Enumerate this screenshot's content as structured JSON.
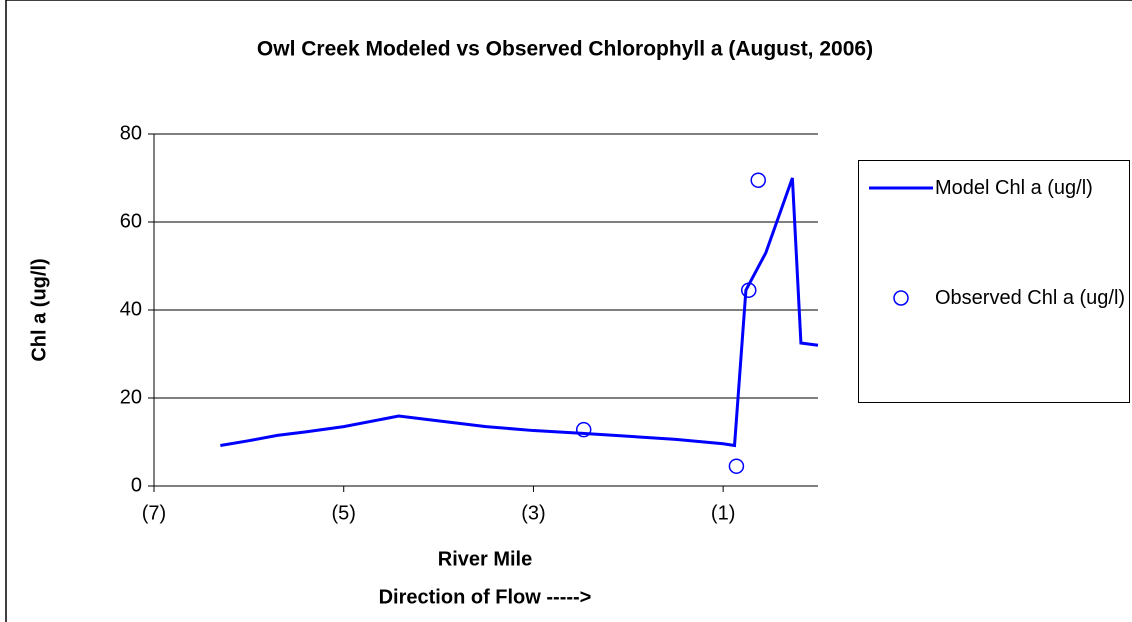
{
  "chart_data": {
    "type": "line",
    "title": "Owl Creek Modeled vs Observed Chlorophyll a  (August, 2006)",
    "x_label": "River Mile",
    "x_label_2": "Direction of Flow ----->",
    "y_label": "Chl a (ug/l)",
    "xlim": [
      -7,
      0
    ],
    "xticks": [
      {
        "value": -7,
        "label": "(7)"
      },
      {
        "value": -5,
        "label": "(5)"
      },
      {
        "value": -3,
        "label": "(3)"
      },
      {
        "value": -1,
        "label": "(1)"
      }
    ],
    "ylim": [
      0,
      80
    ],
    "yticks": [
      0,
      20,
      40,
      60,
      80
    ],
    "grid": true,
    "legend": "right",
    "series": [
      {
        "name": "Model Chl a (ug/l)",
        "type": "line",
        "color": "#0000ff",
        "x": [
          -6.3,
          -6.0,
          -5.7,
          -5.4,
          -5.0,
          -4.42,
          -4.0,
          -3.5,
          -3.0,
          -2.5,
          -2.0,
          -1.5,
          -1.0,
          -0.88,
          -0.76,
          -0.55,
          -0.27,
          -0.18,
          0
        ],
        "values": [
          9.2,
          10.3,
          11.5,
          12.3,
          13.5,
          15.9,
          14.8,
          13.5,
          12.6,
          12.0,
          11.3,
          10.6,
          9.6,
          9.2,
          44.5,
          53,
          70,
          32.5,
          32
        ]
      },
      {
        "name": "Observed Chl a (ug/l)",
        "type": "scatter",
        "color": "#0000ff",
        "x": [
          -2.47,
          -0.86,
          -0.73,
          -0.63
        ],
        "values": [
          12.8,
          4.5,
          44.5,
          69.5
        ]
      }
    ]
  }
}
